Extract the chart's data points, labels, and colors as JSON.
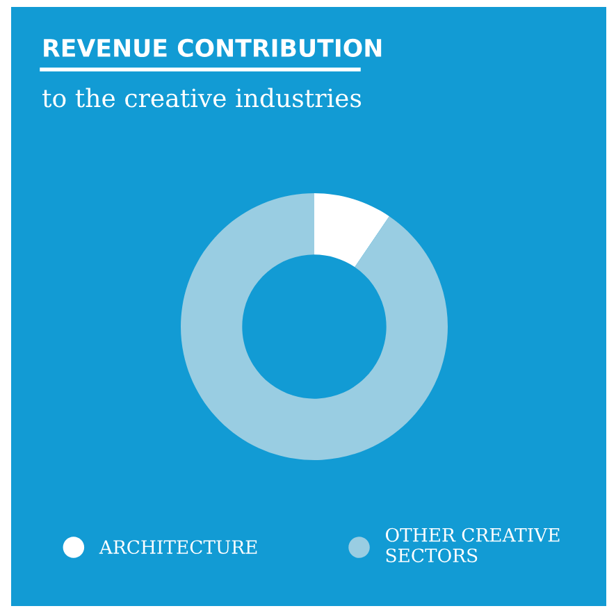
{
  "chart_data": {
    "type": "donut",
    "title": "REVENUE CONTRIBUTION",
    "subtitle": "to the creative industries",
    "categories": [
      "ARCHITECTURE",
      "OTHER CREATIVE SECTORS"
    ],
    "values": [
      9.5,
      90.5
    ],
    "colors": [
      "#ffffff",
      "#99cde2"
    ],
    "legend": "bottom"
  }
}
